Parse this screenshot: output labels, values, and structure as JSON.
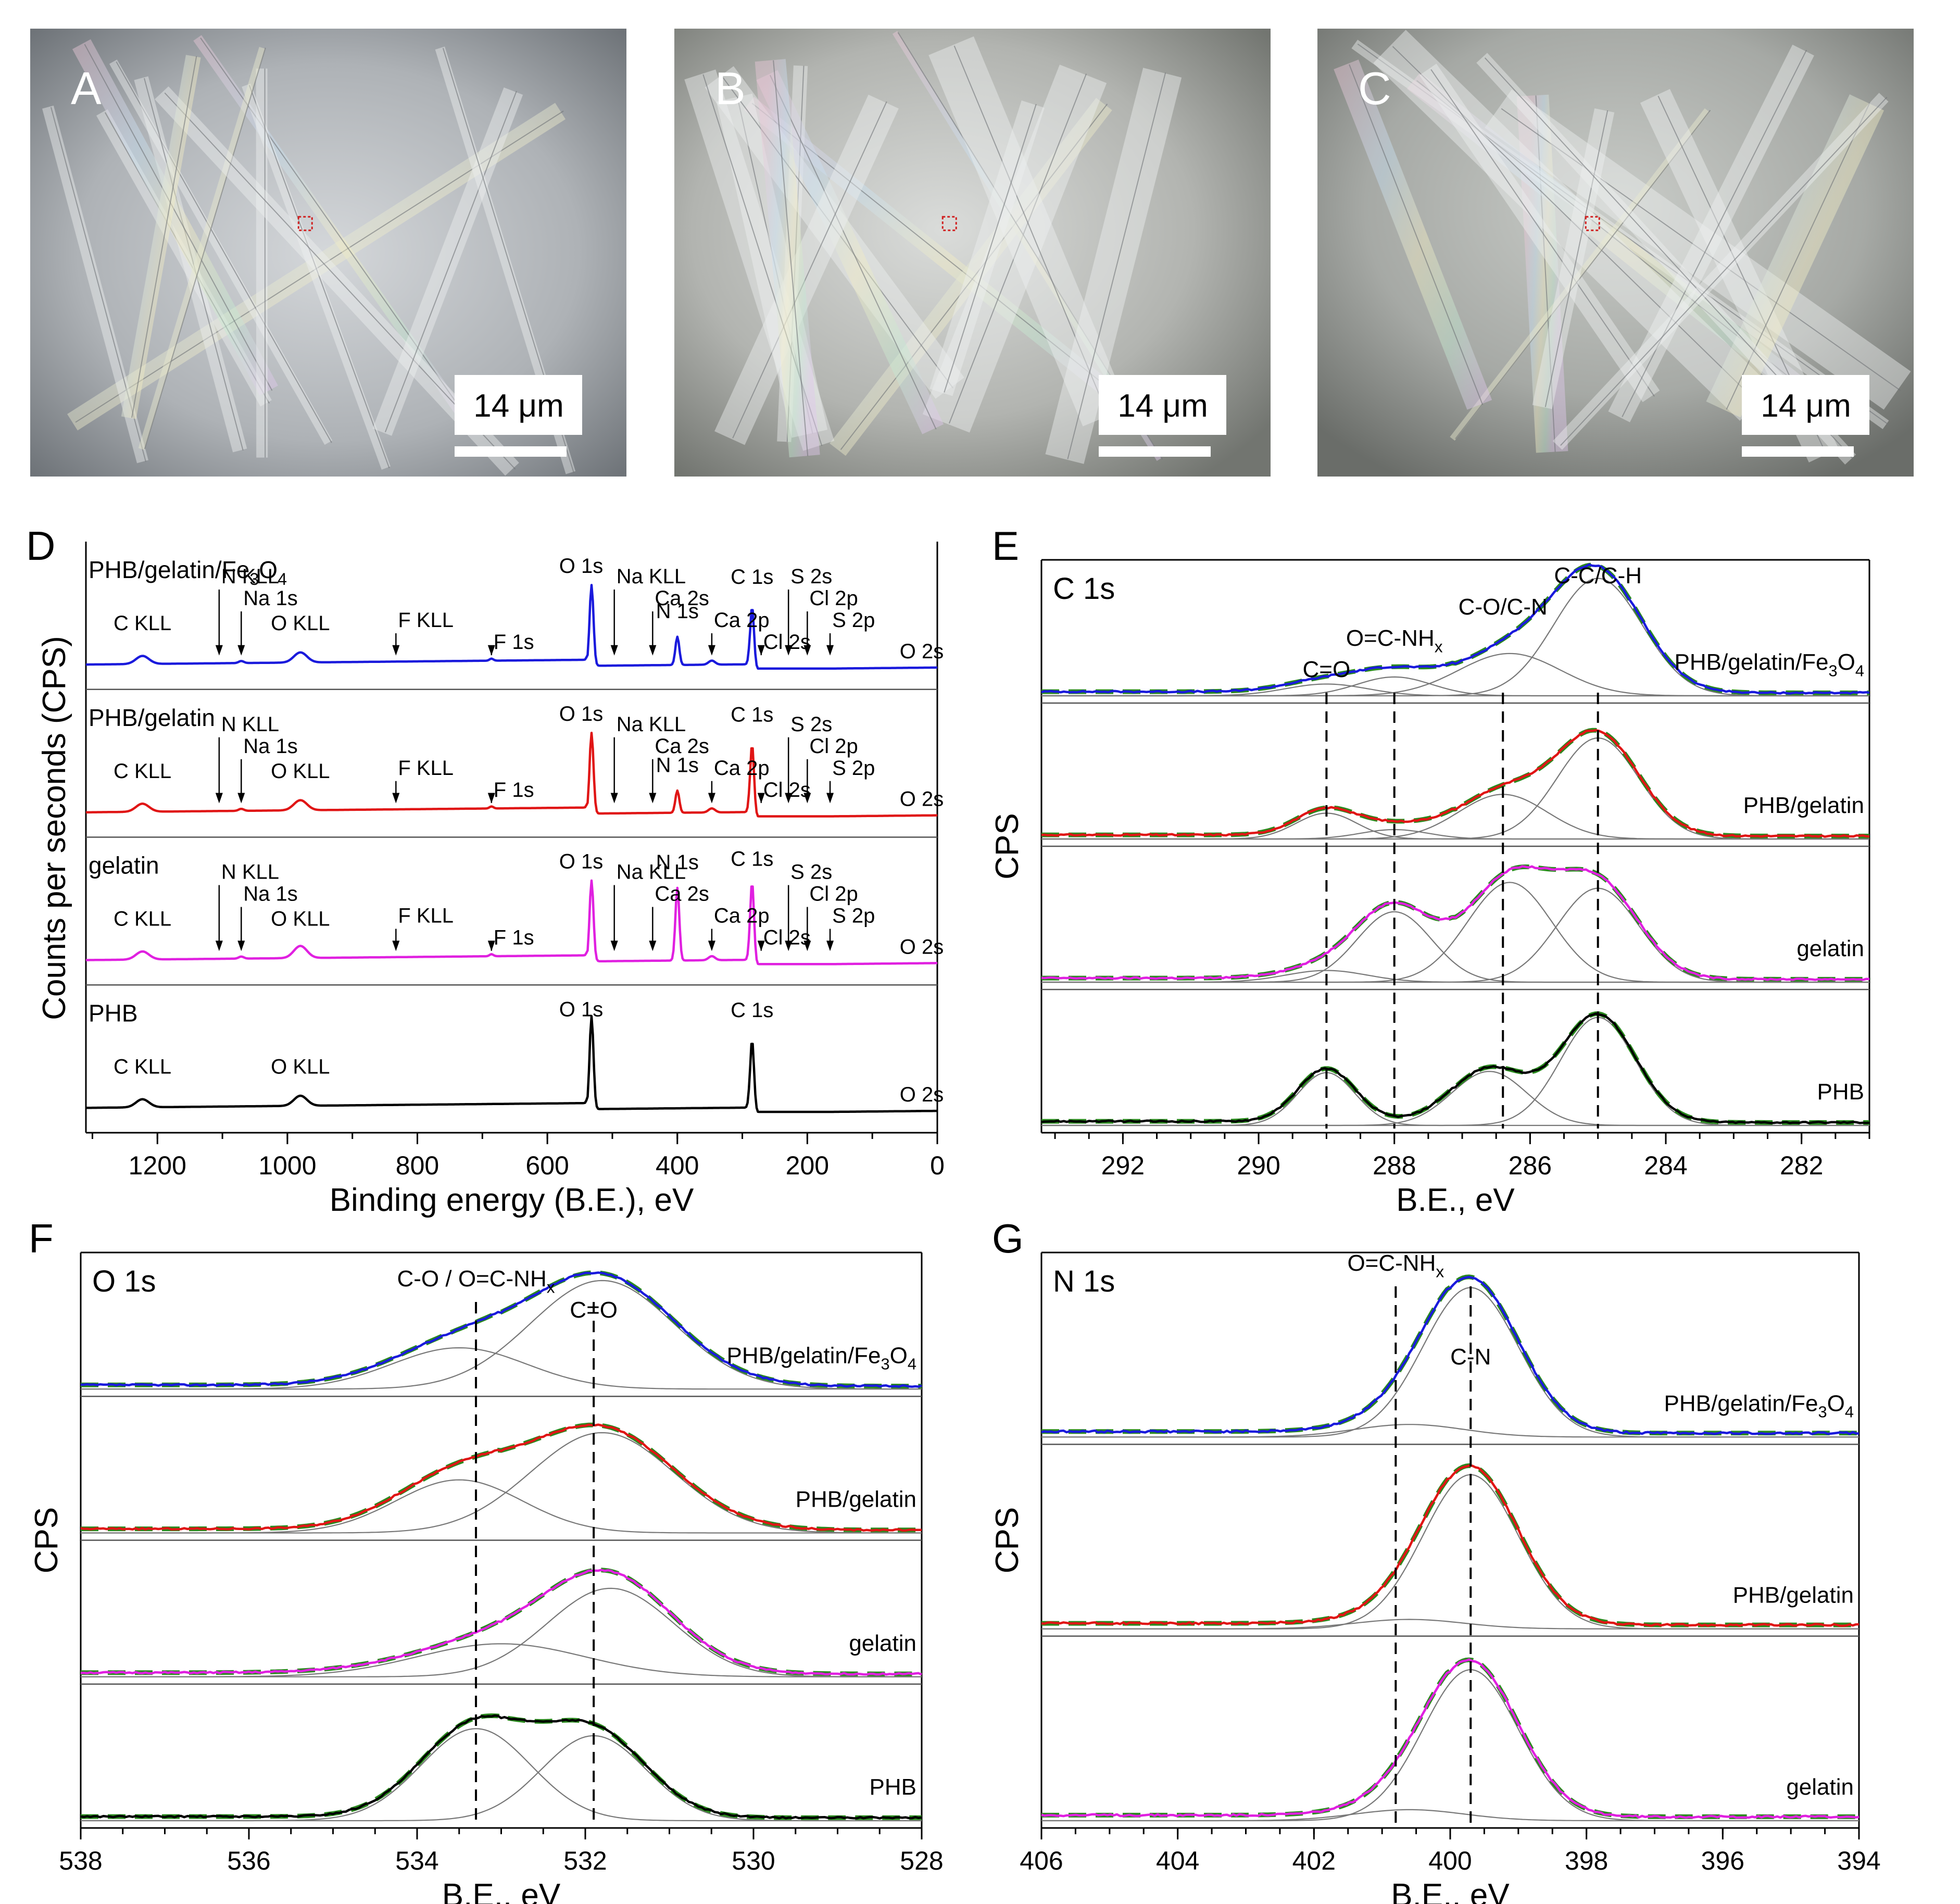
{
  "images": [
    {
      "letter": "A",
      "scalebar": "14 μm"
    },
    {
      "letter": "B",
      "scalebar": "14 μm"
    },
    {
      "letter": "C",
      "scalebar": "14 μm"
    }
  ],
  "colors": {
    "PHB/gelatin/Fe3O4": "#1a1adc",
    "PHB/gelatin": "#e01515",
    "gelatin": "#e020e0",
    "PHB": "#000000",
    "fit": "#2a8a1e",
    "component": "#777777"
  },
  "chart_data": [
    {
      "panel": "D",
      "type": "line",
      "xlabel": "Binding energy (B.E.), eV",
      "ylabel": "Counts per seconds (CPS)",
      "xlim": [
        1310,
        0
      ],
      "xticks": [
        "1200",
        "1000",
        "800",
        "600",
        "400",
        "200",
        "0"
      ],
      "stack": [
        {
          "name": "PHB/gelatin/Fe3O4",
          "name_base": "PHB/gelatin/Fe",
          "name_sub1": "3",
          "name_mid": "O",
          "name_sub2": "4",
          "peaks": [
            {
              "label": "C KLL",
              "x": 1223,
              "h": 0.08
            },
            {
              "label": "O KLL",
              "x": 980,
              "h": 0.1
            },
            {
              "label": "O 1s",
              "x": 532,
              "h": 0.8
            },
            {
              "label": "N 1s",
              "x": 400,
              "h": 0.28
            },
            {
              "label": "C 1s",
              "x": 285,
              "h": 0.62
            }
          ],
          "markers": [
            {
              "label": "N KLL",
              "x": 1105
            },
            {
              "label": "Na 1s",
              "x": 1071
            },
            {
              "label": "F KLL",
              "x": 833
            },
            {
              "label": "F 1s",
              "x": 686
            },
            {
              "label": "Na KLL",
              "x": 497
            },
            {
              "label": "Ca 2s",
              "x": 438
            },
            {
              "label": "Ca 2p",
              "x": 347
            },
            {
              "label": "Cl 2s",
              "x": 271
            },
            {
              "label": "S 2s",
              "x": 229
            },
            {
              "label": "Cl 2p",
              "x": 200
            },
            {
              "label": "S 2p",
              "x": 165
            },
            {
              "label": "O 2s",
              "x": 24
            }
          ]
        },
        {
          "name": "PHB/gelatin",
          "peaks": [
            {
              "label": "C KLL",
              "x": 1223,
              "h": 0.08
            },
            {
              "label": "O KLL",
              "x": 980,
              "h": 0.1
            },
            {
              "label": "O 1s",
              "x": 532,
              "h": 0.8
            },
            {
              "label": "N 1s",
              "x": 400,
              "h": 0.22
            },
            {
              "label": "C 1s",
              "x": 285,
              "h": 0.72
            }
          ],
          "markers": [
            {
              "label": "N KLL",
              "x": 1105
            },
            {
              "label": "Na 1s",
              "x": 1071
            },
            {
              "label": "F KLL",
              "x": 833
            },
            {
              "label": "F 1s",
              "x": 686
            },
            {
              "label": "Na KLL",
              "x": 497
            },
            {
              "label": "Ca 2s",
              "x": 438
            },
            {
              "label": "Ca 2p",
              "x": 347
            },
            {
              "label": "Cl 2s",
              "x": 271
            },
            {
              "label": "S 2s",
              "x": 229
            },
            {
              "label": "Cl 2p",
              "x": 200
            },
            {
              "label": "S 2p",
              "x": 165
            },
            {
              "label": "O 2s",
              "x": 24
            }
          ]
        },
        {
          "name": "gelatin",
          "peaks": [
            {
              "label": "C KLL",
              "x": 1223,
              "h": 0.08
            },
            {
              "label": "O KLL",
              "x": 980,
              "h": 0.12
            },
            {
              "label": "O 1s",
              "x": 532,
              "h": 0.8
            },
            {
              "label": "N 1s",
              "x": 400,
              "h": 0.72
            },
            {
              "label": "C 1s",
              "x": 285,
              "h": 0.82
            }
          ],
          "markers": [
            {
              "label": "N KLL",
              "x": 1105
            },
            {
              "label": "Na 1s",
              "x": 1071
            },
            {
              "label": "F KLL",
              "x": 833
            },
            {
              "label": "F 1s",
              "x": 686
            },
            {
              "label": "Na KLL",
              "x": 497
            },
            {
              "label": "Ca 2s",
              "x": 438
            },
            {
              "label": "Ca 2p",
              "x": 347
            },
            {
              "label": "Cl 2s",
              "x": 271
            },
            {
              "label": "S 2s",
              "x": 229
            },
            {
              "label": "Cl 2p",
              "x": 200
            },
            {
              "label": "S 2p",
              "x": 165
            },
            {
              "label": "O 2s",
              "x": 24
            }
          ]
        },
        {
          "name": "PHB",
          "peaks": [
            {
              "label": "C KLL",
              "x": 1223,
              "h": 0.08
            },
            {
              "label": "O KLL",
              "x": 980,
              "h": 0.1
            },
            {
              "label": "O 1s",
              "x": 532,
              "h": 0.92
            },
            {
              "label": "C 1s",
              "x": 285,
              "h": 0.72
            }
          ],
          "markers": [
            {
              "label": "O 2s",
              "x": 24
            }
          ]
        }
      ]
    },
    {
      "panel": "E",
      "title": "C 1s",
      "type": "line",
      "xlabel": "B.E., eV",
      "ylabel": "CPS",
      "xlim": [
        293.2,
        281
      ],
      "xticks": [
        "292",
        "290",
        "288",
        "286",
        "284",
        "282"
      ],
      "reference_lines": [
        289.0,
        288.0,
        286.4,
        285.0
      ],
      "peak_labels": [
        {
          "label": "C=O",
          "x": 289.0
        },
        {
          "label": "O=C-NH",
          "sub": "x",
          "x": 288.0
        },
        {
          "label": "C-O/C-N",
          "x": 286.4
        },
        {
          "label": "C-C/C-H",
          "x": 285.0
        }
      ],
      "stack": [
        {
          "name": "PHB/gelatin/Fe3O4",
          "name_base": "PHB/gelatin/Fe",
          "name_sub1": "3",
          "name_mid": "O",
          "name_sub2": "4",
          "components": [
            {
              "c": 289.0,
              "a": 0.1,
              "w": 0.6
            },
            {
              "c": 288.0,
              "a": 0.16,
              "w": 0.55
            },
            {
              "c": 286.3,
              "a": 0.36,
              "w": 0.75
            },
            {
              "c": 285.0,
              "a": 1.0,
              "w": 0.65
            }
          ]
        },
        {
          "name": "PHB/gelatin",
          "components": [
            {
              "c": 289.0,
              "a": 0.22,
              "w": 0.45
            },
            {
              "c": 288.0,
              "a": 0.08,
              "w": 0.5
            },
            {
              "c": 286.4,
              "a": 0.38,
              "w": 0.65
            },
            {
              "c": 285.0,
              "a": 0.86,
              "w": 0.6
            }
          ]
        },
        {
          "name": "gelatin",
          "components": [
            {
              "c": 289.0,
              "a": 0.1,
              "w": 0.6
            },
            {
              "c": 288.0,
              "a": 0.6,
              "w": 0.55
            },
            {
              "c": 286.3,
              "a": 0.85,
              "w": 0.62
            },
            {
              "c": 285.0,
              "a": 0.8,
              "w": 0.6
            }
          ]
        },
        {
          "name": "PHB",
          "components": [
            {
              "c": 289.0,
              "a": 0.45,
              "w": 0.42
            },
            {
              "c": 286.6,
              "a": 0.46,
              "w": 0.55
            },
            {
              "c": 285.0,
              "a": 0.92,
              "w": 0.55
            }
          ]
        }
      ]
    },
    {
      "panel": "F",
      "title": "O 1s",
      "type": "line",
      "xlabel": "B.E., eV",
      "ylabel": "CPS",
      "xlim": [
        538,
        528
      ],
      "xticks": [
        "538",
        "536",
        "534",
        "532",
        "530",
        "528"
      ],
      "reference_lines": [
        533.3,
        531.9
      ],
      "peak_labels": [
        {
          "label": "C-O / O=C-NH",
          "sub": "x",
          "x": 533.3
        },
        {
          "label": "C=O",
          "x": 531.9
        }
      ],
      "stack": [
        {
          "name": "PHB/gelatin/Fe3O4",
          "name_base": "PHB/gelatin/Fe",
          "name_sub1": "3",
          "name_mid": "O",
          "name_sub2": "4",
          "components": [
            {
              "c": 533.5,
              "a": 0.35,
              "w": 0.8
            },
            {
              "c": 531.8,
              "a": 0.92,
              "w": 0.85
            }
          ]
        },
        {
          "name": "PHB/gelatin",
          "components": [
            {
              "c": 533.5,
              "a": 0.45,
              "w": 0.75
            },
            {
              "c": 531.8,
              "a": 0.85,
              "w": 0.85
            }
          ]
        },
        {
          "name": "gelatin",
          "components": [
            {
              "c": 533.0,
              "a": 0.28,
              "w": 1.0
            },
            {
              "c": 531.7,
              "a": 0.75,
              "w": 0.75
            }
          ]
        },
        {
          "name": "PHB",
          "components": [
            {
              "c": 533.3,
              "a": 0.78,
              "w": 0.65
            },
            {
              "c": 531.9,
              "a": 0.72,
              "w": 0.62
            }
          ]
        }
      ]
    },
    {
      "panel": "G",
      "title": "N 1s",
      "type": "line",
      "xlabel": "B.E., eV",
      "ylabel": "CPS",
      "xlim": [
        406,
        394
      ],
      "xticks": [
        "406",
        "404",
        "402",
        "400",
        "398",
        "396",
        "394"
      ],
      "reference_lines": [
        400.8,
        399.7
      ],
      "peak_labels": [
        {
          "label": "O=C-NH",
          "sub": "x",
          "x": 400.8
        },
        {
          "label": "C-N",
          "x": 399.7
        }
      ],
      "stack": [
        {
          "name": "PHB/gelatin/Fe3O4",
          "name_base": "PHB/gelatin/Fe",
          "name_sub1": "3",
          "name_mid": "O",
          "name_sub2": "4",
          "components": [
            {
              "c": 400.6,
              "a": 0.08,
              "w": 0.8
            },
            {
              "c": 399.7,
              "a": 0.95,
              "w": 0.7
            }
          ]
        },
        {
          "name": "PHB/gelatin",
          "components": [
            {
              "c": 400.6,
              "a": 0.06,
              "w": 0.8
            },
            {
              "c": 399.7,
              "a": 0.98,
              "w": 0.7
            }
          ]
        },
        {
          "name": "gelatin",
          "components": [
            {
              "c": 400.6,
              "a": 0.07,
              "w": 0.8
            },
            {
              "c": 399.7,
              "a": 0.96,
              "w": 0.7
            }
          ]
        }
      ]
    }
  ]
}
